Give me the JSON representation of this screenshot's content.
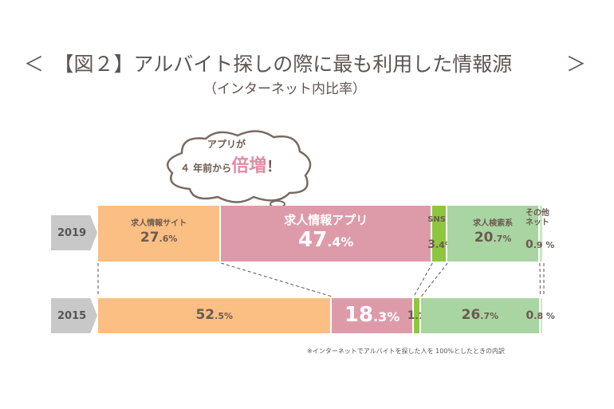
{
  "title": {
    "left": "＜",
    "text": "【図２】アルバイト探しの際に最も利用した情報源",
    "right": "＞",
    "subtitle": "（インターネット内比率）"
  },
  "callout": {
    "line1": "アプリが",
    "line2": "４ 年前から",
    "emph": "倍増",
    "excl": "！"
  },
  "note": "※インターネットでアルバイトを探した人を 100%としたときの内訳",
  "colors": {
    "site": "#fbbf83",
    "app": "#dd9baa",
    "sns": "#8dc63f",
    "search": "#a8d5a2",
    "other": "#c9e6c3"
  },
  "chart_data": {
    "type": "stacked-bar-100",
    "categories": [
      "求人情報サイト",
      "求人情報アプリ",
      "SNS",
      "求人検索系",
      "その他ネット"
    ],
    "series": [
      {
        "name": "2019",
        "values": [
          27.6,
          47.4,
          3.4,
          20.7,
          0.9
        ],
        "labels": [
          "27.6%",
          "47.4%",
          "3.4%",
          "20.7%",
          "0.9 %"
        ]
      },
      {
        "name": "2015",
        "values": [
          52.5,
          18.3,
          1.7,
          26.7,
          0.8
        ],
        "labels": [
          "52.5%",
          "18.3%",
          "1.7 %",
          "26.7%",
          "0.8 %"
        ]
      }
    ],
    "segment_labels_2019": [
      "求人情報サイト",
      "求人情報アプリ",
      "SNS",
      "求人検索系",
      "その他\nネット"
    ]
  }
}
